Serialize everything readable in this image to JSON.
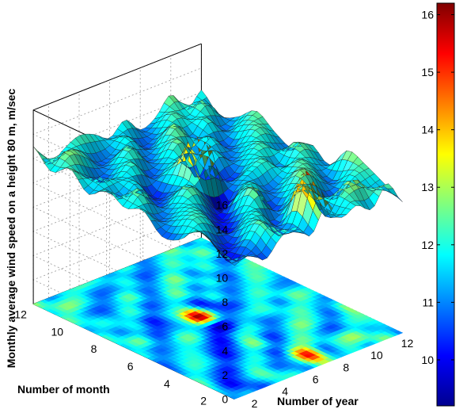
{
  "chart_data": {
    "type": "surface3d",
    "title": "",
    "xlabel": "Number of year",
    "ylabel": "Number of month",
    "zlabel": "Monthly average wind speed on a height 80 m, m/sec",
    "x_ticks": [
      "2",
      "4",
      "6",
      "8",
      "10",
      "12"
    ],
    "y_ticks": [
      "2",
      "4",
      "6",
      "8",
      "10",
      "12"
    ],
    "z_ticks": [
      "0",
      "2",
      "4",
      "6",
      "8",
      "10",
      "12",
      "14",
      "16"
    ],
    "colorbar_ticks": [
      "10",
      "11",
      "12",
      "13",
      "14",
      "15",
      "16"
    ],
    "xlim": [
      1,
      12
    ],
    "ylim": [
      1,
      12
    ],
    "zlim": [
      0,
      16
    ],
    "color_range": [
      9.2,
      16.2
    ],
    "colormap": "jet",
    "grid": true,
    "surface_x": [
      1,
      2,
      3,
      4,
      5,
      6,
      7,
      8,
      9,
      10,
      11,
      12
    ],
    "surface_y": [
      1,
      2,
      3,
      4,
      5,
      6,
      7,
      8,
      9,
      10,
      11,
      12
    ],
    "surface_z": [
      [
        11.0,
        11.5,
        10.5,
        11.8,
        12.2,
        11.0,
        13.0,
        11.5,
        12.0,
        11.2,
        12.8,
        10.8
      ],
      [
        11.8,
        10.0,
        11.2,
        12.5,
        10.8,
        11.6,
        15.4,
        11.0,
        12.2,
        13.0,
        11.5,
        11.6
      ],
      [
        12.5,
        11.0,
        10.2,
        11.5,
        12.0,
        10.5,
        11.8,
        12.6,
        11.3,
        10.6,
        12.0,
        12.4
      ],
      [
        11.0,
        12.2,
        11.6,
        10.0,
        11.2,
        12.8,
        10.4,
        11.5,
        12.8,
        11.8,
        10.8,
        12.9
      ],
      [
        10.6,
        11.5,
        12.0,
        11.0,
        10.0,
        11.6,
        12.0,
        10.8,
        11.4,
        12.4,
        11.6,
        11.0
      ],
      [
        12.0,
        10.8,
        11.4,
        12.6,
        11.2,
        9.6,
        10.9,
        11.8,
        12.2,
        11.0,
        12.6,
        12.0
      ],
      [
        11.5,
        12.6,
        10.6,
        11.0,
        12.0,
        16.0,
        11.2,
        10.4,
        11.6,
        12.3,
        11.2,
        10.9
      ],
      [
        12.3,
        11.0,
        11.8,
        10.2,
        11.6,
        12.4,
        10.2,
        12.0,
        10.8,
        11.5,
        12.4,
        11.6
      ],
      [
        11.2,
        12.0,
        11.5,
        12.2,
        10.6,
        11.4,
        12.6,
        11.0,
        12.0,
        10.6,
        11.8,
        12.6
      ],
      [
        12.6,
        11.4,
        10.6,
        11.4,
        12.5,
        10.8,
        11.6,
        12.8,
        11.0,
        12.2,
        10.8,
        11.4
      ],
      [
        11.6,
        12.8,
        12.2,
        10.8,
        11.0,
        12.0,
        10.6,
        11.2,
        12.4,
        11.6,
        12.6,
        10.8
      ],
      [
        13.0,
        11.0,
        11.8,
        12.4,
        12.0,
        11.2,
        12.2,
        10.9,
        11.4,
        12.8,
        11.0,
        12.2
      ]
    ]
  }
}
